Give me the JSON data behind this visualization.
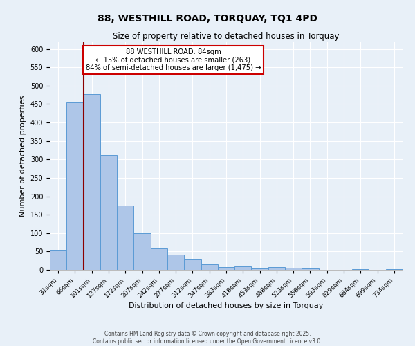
{
  "title": "88, WESTHILL ROAD, TORQUAY, TQ1 4PD",
  "subtitle": "Size of property relative to detached houses in Torquay",
  "xlabel": "Distribution of detached houses by size in Torquay",
  "ylabel": "Number of detached properties",
  "bin_labels": [
    "31sqm",
    "66sqm",
    "101sqm",
    "137sqm",
    "172sqm",
    "207sqm",
    "242sqm",
    "277sqm",
    "312sqm",
    "347sqm",
    "383sqm",
    "418sqm",
    "453sqm",
    "488sqm",
    "523sqm",
    "558sqm",
    "593sqm",
    "629sqm",
    "664sqm",
    "699sqm",
    "734sqm"
  ],
  "bar_values": [
    55,
    455,
    478,
    312,
    175,
    100,
    58,
    42,
    30,
    15,
    8,
    10,
    3,
    8,
    5,
    3,
    0,
    0,
    2,
    0,
    2
  ],
  "bar_color": "#aec6e8",
  "bar_edge_color": "#5b9bd5",
  "property_line_bin_index": 1.52,
  "line_color": "#8b0000",
  "annotation_text": "88 WESTHILL ROAD: 84sqm\n← 15% of detached houses are smaller (263)\n84% of semi-detached houses are larger (1,475) →",
  "annotation_box_color": "#ffffff",
  "annotation_border_color": "#cc0000",
  "ylim": [
    0,
    620
  ],
  "yticks": [
    0,
    50,
    100,
    150,
    200,
    250,
    300,
    350,
    400,
    450,
    500,
    550,
    600
  ],
  "background_color": "#e8f0f8",
  "grid_color": "#ffffff",
  "footer_line1": "Contains HM Land Registry data © Crown copyright and database right 2025.",
  "footer_line2": "Contains public sector information licensed under the Open Government Licence v3.0."
}
